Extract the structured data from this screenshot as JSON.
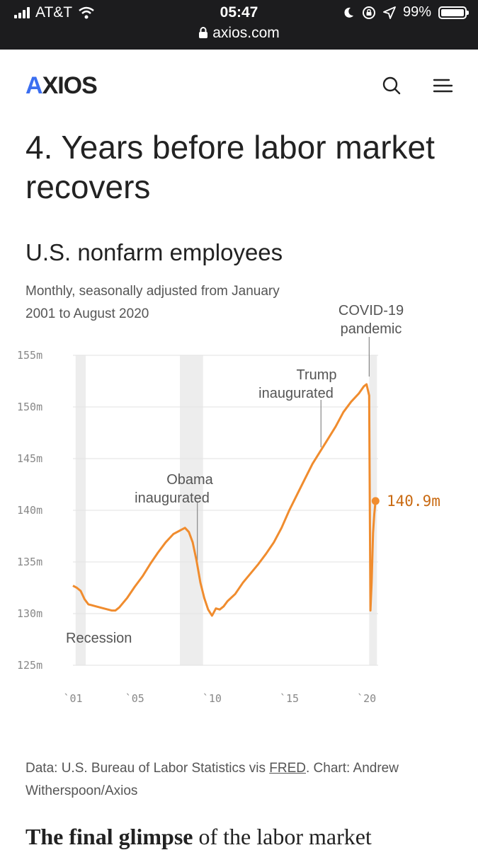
{
  "status_bar": {
    "carrier": "AT&T",
    "time": "05:47",
    "url": "axios.com",
    "battery": "99%"
  },
  "nav": {
    "logo_a": "A",
    "logo_rest": "XIOS"
  },
  "article": {
    "heading": "4. Years before labor market recovers",
    "paragraph_bold": "The final glimpse",
    "paragraph_rest": " of the labor market"
  },
  "chart_data": {
    "type": "line",
    "title": "U.S. nonfarm employees",
    "subtitle": "Monthly, seasonally adjusted from January 2001 to August 2020",
    "yticks": [
      "155m",
      "150m",
      "145m",
      "140m",
      "135m",
      "130m",
      "125m"
    ],
    "ytick_values": [
      155,
      150,
      145,
      140,
      135,
      130,
      125
    ],
    "xticks": [
      "`01",
      "`05",
      "`10",
      "`15",
      "`20"
    ],
    "xtick_values": [
      2001,
      2005,
      2010,
      2015,
      2020
    ],
    "ylim": [
      125,
      155
    ],
    "xlim": [
      2001,
      2020.67
    ],
    "recessions": [
      [
        2001.17,
        2001.83
      ],
      [
        2007.92,
        2009.42
      ]
    ],
    "series": [
      {
        "color": "#f08c2e",
        "points": [
          [
            2001.0,
            132.7
          ],
          [
            2001.25,
            132.5
          ],
          [
            2001.5,
            132.2
          ],
          [
            2001.75,
            131.4
          ],
          [
            2002.0,
            130.9
          ],
          [
            2002.5,
            130.7
          ],
          [
            2003.0,
            130.5
          ],
          [
            2003.5,
            130.3
          ],
          [
            2003.75,
            130.3
          ],
          [
            2004.0,
            130.6
          ],
          [
            2004.5,
            131.5
          ],
          [
            2005.0,
            132.6
          ],
          [
            2005.5,
            133.6
          ],
          [
            2006.0,
            134.8
          ],
          [
            2006.5,
            135.9
          ],
          [
            2007.0,
            136.9
          ],
          [
            2007.5,
            137.7
          ],
          [
            2008.0,
            138.1
          ],
          [
            2008.25,
            138.3
          ],
          [
            2008.5,
            137.9
          ],
          [
            2008.75,
            136.9
          ],
          [
            2009.0,
            135.1
          ],
          [
            2009.25,
            133.0
          ],
          [
            2009.5,
            131.5
          ],
          [
            2009.75,
            130.4
          ],
          [
            2010.0,
            129.8
          ],
          [
            2010.25,
            130.5
          ],
          [
            2010.5,
            130.4
          ],
          [
            2010.75,
            130.7
          ],
          [
            2011.0,
            131.2
          ],
          [
            2011.5,
            131.9
          ],
          [
            2012.0,
            133.0
          ],
          [
            2012.5,
            133.9
          ],
          [
            2013.0,
            134.8
          ],
          [
            2013.5,
            135.8
          ],
          [
            2014.0,
            136.9
          ],
          [
            2014.5,
            138.3
          ],
          [
            2015.0,
            140.0
          ],
          [
            2015.5,
            141.5
          ],
          [
            2016.0,
            143.0
          ],
          [
            2016.5,
            144.5
          ],
          [
            2017.0,
            145.7
          ],
          [
            2017.5,
            146.9
          ],
          [
            2018.0,
            148.1
          ],
          [
            2018.5,
            149.5
          ],
          [
            2019.0,
            150.5
          ],
          [
            2019.5,
            151.3
          ],
          [
            2019.83,
            152.0
          ],
          [
            2020.0,
            152.2
          ],
          [
            2020.17,
            151.1
          ],
          [
            2020.25,
            130.3
          ],
          [
            2020.33,
            133.0
          ],
          [
            2020.42,
            137.8
          ],
          [
            2020.5,
            139.6
          ],
          [
            2020.58,
            140.9
          ]
        ]
      }
    ],
    "end_label": "140.9m",
    "annotations": [
      {
        "label_1": "Obama",
        "label_2": "inaugurated",
        "x": 2009.05
      },
      {
        "label_1": "Trump",
        "label_2": "inaugurated",
        "x": 2017.05
      },
      {
        "label_1": "COVID-19",
        "label_2": "pandemic",
        "x": 2020.17
      }
    ],
    "recession_label": "Recession"
  },
  "footer": {
    "source_pre": "Data: U.S. Bureau of Labor Statistics vis ",
    "source_link": "FRED",
    "source_post": ". Chart: Andrew Witherspoon/Axios"
  }
}
